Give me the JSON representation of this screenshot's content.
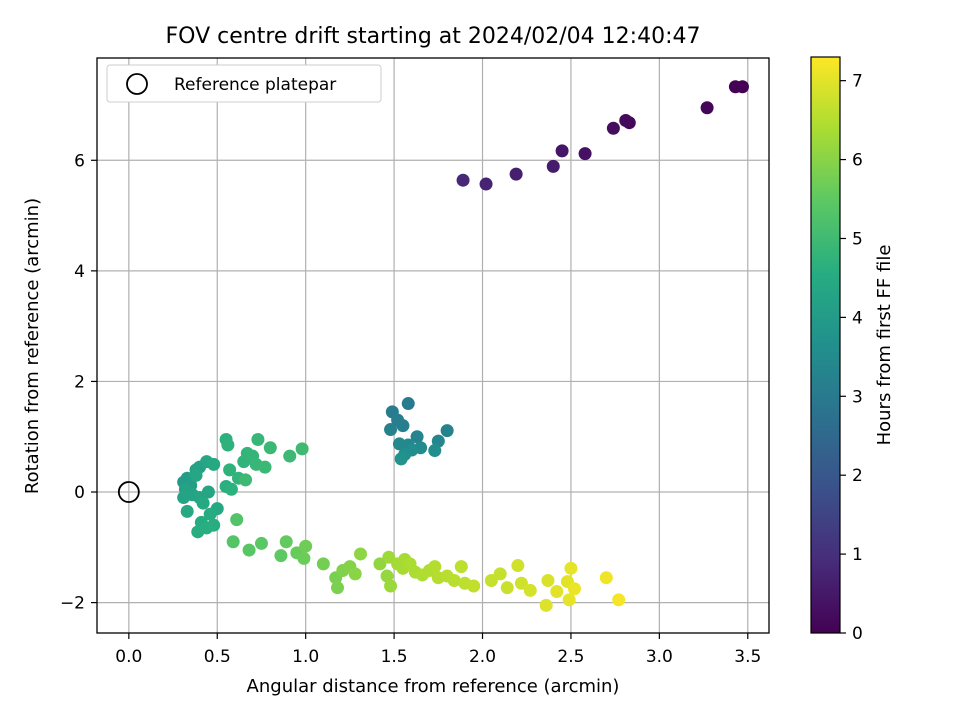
{
  "chart_data": {
    "type": "scatter",
    "title": "FOV centre drift starting at 2024/02/04 12:40:47",
    "xlabel": "Angular distance from reference (arcmin)",
    "ylabel": "Rotation from reference (arcmin)",
    "xlim": [
      -0.18,
      3.62
    ],
    "ylim": [
      -2.55,
      7.85
    ],
    "xticks": [
      0.0,
      0.5,
      1.0,
      1.5,
      2.0,
      2.5,
      3.0,
      3.5
    ],
    "xtick_labels": [
      "0.0",
      "0.5",
      "1.0",
      "1.5",
      "2.0",
      "2.5",
      "3.0",
      "3.5"
    ],
    "yticks": [
      -2,
      0,
      2,
      4,
      6
    ],
    "ytick_labels": [
      "−2",
      "0",
      "2",
      "4",
      "6"
    ],
    "grid": true,
    "legend": {
      "placement": "upper-left",
      "entries": [
        "Reference platepar"
      ]
    },
    "colorbar": {
      "label": "Hours from first FF file",
      "colormap": "viridis",
      "range": [
        0,
        7.3
      ],
      "ticks": [
        0,
        1,
        2,
        3,
        4,
        5,
        6,
        7
      ],
      "tick_labels": [
        "0",
        "1",
        "2",
        "3",
        "4",
        "5",
        "6",
        "7"
      ]
    },
    "reference_point": {
      "x": 0.0,
      "y": 0.0
    },
    "points": [
      {
        "x": 3.47,
        "y": 7.33,
        "h": 0.0
      },
      {
        "x": 3.43,
        "y": 7.33,
        "h": 0.05
      },
      {
        "x": 3.27,
        "y": 6.95,
        "h": 0.1
      },
      {
        "x": 2.83,
        "y": 6.68,
        "h": 0.15
      },
      {
        "x": 2.81,
        "y": 6.72,
        "h": 0.2
      },
      {
        "x": 2.74,
        "y": 6.58,
        "h": 0.25
      },
      {
        "x": 2.58,
        "y": 6.12,
        "h": 0.35
      },
      {
        "x": 2.45,
        "y": 6.17,
        "h": 0.45
      },
      {
        "x": 2.4,
        "y": 5.89,
        "h": 0.55
      },
      {
        "x": 2.19,
        "y": 5.75,
        "h": 0.65
      },
      {
        "x": 2.02,
        "y": 5.57,
        "h": 0.75
      },
      {
        "x": 1.89,
        "y": 5.64,
        "h": 0.85
      },
      {
        "x": 1.58,
        "y": 1.6,
        "h": 3.0
      },
      {
        "x": 1.49,
        "y": 1.45,
        "h": 3.05
      },
      {
        "x": 1.52,
        "y": 1.3,
        "h": 3.1
      },
      {
        "x": 1.55,
        "y": 1.2,
        "h": 3.15
      },
      {
        "x": 1.48,
        "y": 1.13,
        "h": 3.2
      },
      {
        "x": 1.8,
        "y": 1.11,
        "h": 3.25
      },
      {
        "x": 1.63,
        "y": 1.0,
        "h": 3.3
      },
      {
        "x": 1.75,
        "y": 0.92,
        "h": 3.35
      },
      {
        "x": 1.53,
        "y": 0.87,
        "h": 3.4
      },
      {
        "x": 1.58,
        "y": 0.85,
        "h": 3.45
      },
      {
        "x": 1.65,
        "y": 0.8,
        "h": 3.5
      },
      {
        "x": 1.6,
        "y": 0.76,
        "h": 3.55
      },
      {
        "x": 1.73,
        "y": 0.75,
        "h": 3.6
      },
      {
        "x": 1.56,
        "y": 0.68,
        "h": 3.65
      },
      {
        "x": 1.54,
        "y": 0.6,
        "h": 3.7
      },
      {
        "x": 0.31,
        "y": 0.18,
        "h": 4.0
      },
      {
        "x": 0.33,
        "y": 0.25,
        "h": 4.05
      },
      {
        "x": 0.35,
        "y": 0.12,
        "h": 4.1
      },
      {
        "x": 0.38,
        "y": 0.4,
        "h": 4.15
      },
      {
        "x": 0.4,
        "y": 0.45,
        "h": 4.2
      },
      {
        "x": 0.32,
        "y": 0.05,
        "h": 4.2
      },
      {
        "x": 0.36,
        "y": -0.05,
        "h": 4.25
      },
      {
        "x": 0.31,
        "y": -0.1,
        "h": 4.25
      },
      {
        "x": 0.4,
        "y": -0.1,
        "h": 4.3
      },
      {
        "x": 0.45,
        "y": 0.0,
        "h": 4.3
      },
      {
        "x": 0.38,
        "y": 0.3,
        "h": 4.35
      },
      {
        "x": 0.44,
        "y": 0.55,
        "h": 4.35
      },
      {
        "x": 0.48,
        "y": 0.5,
        "h": 4.4
      },
      {
        "x": 0.42,
        "y": -0.2,
        "h": 4.4
      },
      {
        "x": 0.33,
        "y": -0.35,
        "h": 4.45
      },
      {
        "x": 0.5,
        "y": -0.3,
        "h": 4.45
      },
      {
        "x": 0.46,
        "y": -0.4,
        "h": 4.5
      },
      {
        "x": 0.41,
        "y": -0.55,
        "h": 4.5
      },
      {
        "x": 0.48,
        "y": -0.6,
        "h": 4.55
      },
      {
        "x": 0.39,
        "y": -0.72,
        "h": 4.55
      },
      {
        "x": 0.44,
        "y": -0.65,
        "h": 4.6
      },
      {
        "x": 0.55,
        "y": 0.1,
        "h": 4.6
      },
      {
        "x": 0.58,
        "y": 0.05,
        "h": 4.65
      },
      {
        "x": 0.55,
        "y": 0.95,
        "h": 4.65
      },
      {
        "x": 0.56,
        "y": 0.85,
        "h": 4.7
      },
      {
        "x": 0.57,
        "y": 0.4,
        "h": 4.7
      },
      {
        "x": 0.62,
        "y": 0.25,
        "h": 4.75
      },
      {
        "x": 0.65,
        "y": 0.55,
        "h": 4.75
      },
      {
        "x": 0.67,
        "y": 0.7,
        "h": 4.8
      },
      {
        "x": 0.7,
        "y": 0.65,
        "h": 4.8
      },
      {
        "x": 0.73,
        "y": 0.95,
        "h": 4.85
      },
      {
        "x": 0.72,
        "y": 0.5,
        "h": 4.85
      },
      {
        "x": 0.77,
        "y": 0.45,
        "h": 4.9
      },
      {
        "x": 0.8,
        "y": 0.8,
        "h": 4.9
      },
      {
        "x": 0.66,
        "y": 0.22,
        "h": 4.95
      },
      {
        "x": 0.91,
        "y": 0.65,
        "h": 4.95
      },
      {
        "x": 0.98,
        "y": 0.78,
        "h": 5.0
      },
      {
        "x": 0.61,
        "y": -0.5,
        "h": 5.3
      },
      {
        "x": 0.59,
        "y": -0.9,
        "h": 5.35
      },
      {
        "x": 0.68,
        "y": -1.05,
        "h": 5.4
      },
      {
        "x": 0.75,
        "y": -0.93,
        "h": 5.45
      },
      {
        "x": 0.86,
        "y": -1.15,
        "h": 5.5
      },
      {
        "x": 0.89,
        "y": -0.9,
        "h": 5.55
      },
      {
        "x": 0.95,
        "y": -1.1,
        "h": 5.6
      },
      {
        "x": 0.99,
        "y": -1.2,
        "h": 5.65
      },
      {
        "x": 1.0,
        "y": -0.98,
        "h": 5.7
      },
      {
        "x": 1.1,
        "y": -1.3,
        "h": 5.75
      },
      {
        "x": 1.17,
        "y": -1.55,
        "h": 5.8
      },
      {
        "x": 1.18,
        "y": -1.73,
        "h": 5.85
      },
      {
        "x": 1.21,
        "y": -1.42,
        "h": 5.9
      },
      {
        "x": 1.25,
        "y": -1.35,
        "h": 5.95
      },
      {
        "x": 1.28,
        "y": -1.48,
        "h": 6.0
      },
      {
        "x": 1.31,
        "y": -1.12,
        "h": 6.05
      },
      {
        "x": 1.42,
        "y": -1.3,
        "h": 6.1
      },
      {
        "x": 1.46,
        "y": -1.52,
        "h": 6.15
      },
      {
        "x": 1.48,
        "y": -1.7,
        "h": 6.2
      },
      {
        "x": 1.47,
        "y": -1.18,
        "h": 6.25
      },
      {
        "x": 1.52,
        "y": -1.3,
        "h": 6.3
      },
      {
        "x": 1.55,
        "y": -1.38,
        "h": 6.35
      },
      {
        "x": 1.56,
        "y": -1.22,
        "h": 6.35
      },
      {
        "x": 1.59,
        "y": -1.3,
        "h": 6.4
      },
      {
        "x": 1.62,
        "y": -1.45,
        "h": 6.4
      },
      {
        "x": 1.66,
        "y": -1.5,
        "h": 6.45
      },
      {
        "x": 1.7,
        "y": -1.42,
        "h": 6.45
      },
      {
        "x": 1.73,
        "y": -1.35,
        "h": 6.5
      },
      {
        "x": 1.75,
        "y": -1.55,
        "h": 6.5
      },
      {
        "x": 1.8,
        "y": -1.52,
        "h": 6.55
      },
      {
        "x": 1.84,
        "y": -1.6,
        "h": 6.55
      },
      {
        "x": 1.88,
        "y": -1.35,
        "h": 6.6
      },
      {
        "x": 1.9,
        "y": -1.65,
        "h": 6.6
      },
      {
        "x": 1.95,
        "y": -1.7,
        "h": 6.65
      },
      {
        "x": 2.05,
        "y": -1.6,
        "h": 6.7
      },
      {
        "x": 2.1,
        "y": -1.48,
        "h": 6.7
      },
      {
        "x": 2.14,
        "y": -1.73,
        "h": 6.75
      },
      {
        "x": 2.2,
        "y": -1.33,
        "h": 6.8
      },
      {
        "x": 2.22,
        "y": -1.65,
        "h": 6.8
      },
      {
        "x": 2.27,
        "y": -1.78,
        "h": 6.85
      },
      {
        "x": 2.37,
        "y": -1.6,
        "h": 6.9
      },
      {
        "x": 2.36,
        "y": -2.05,
        "h": 6.95
      },
      {
        "x": 2.42,
        "y": -1.8,
        "h": 7.0
      },
      {
        "x": 2.48,
        "y": -1.62,
        "h": 7.0
      },
      {
        "x": 2.5,
        "y": -1.38,
        "h": 7.05
      },
      {
        "x": 2.49,
        "y": -1.95,
        "h": 7.05
      },
      {
        "x": 2.52,
        "y": -1.75,
        "h": 7.1
      },
      {
        "x": 2.7,
        "y": -1.55,
        "h": 7.15
      },
      {
        "x": 2.77,
        "y": -1.95,
        "h": 7.2
      }
    ]
  }
}
